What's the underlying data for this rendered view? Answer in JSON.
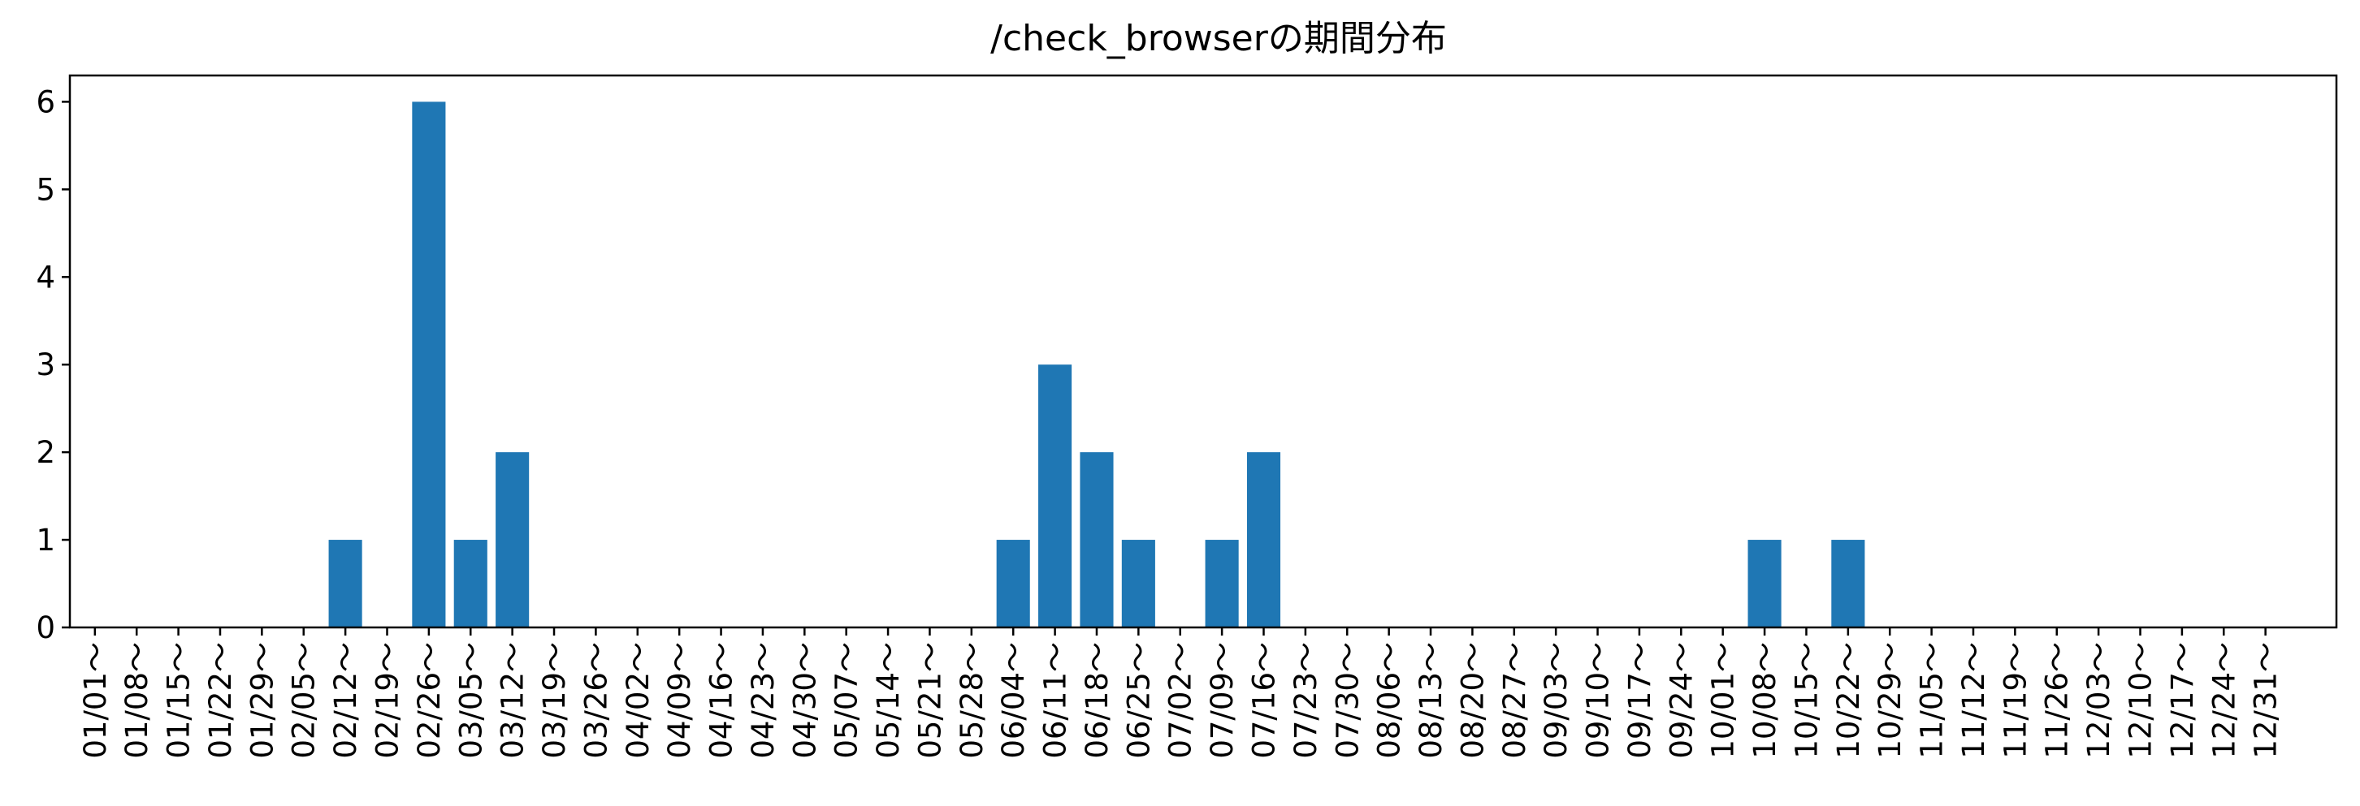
{
  "chart_data": {
    "type": "bar",
    "title": "/check_browserの期間分布",
    "xlabel": "",
    "ylabel": "",
    "ylim": [
      0,
      6.3
    ],
    "yticks": [
      0,
      1,
      2,
      3,
      4,
      5,
      6
    ],
    "grid": false,
    "bar_color": "#1f77b4",
    "categories": [
      "01/01～",
      "01/08～",
      "01/15～",
      "01/22～",
      "01/29～",
      "02/05～",
      "02/12～",
      "02/19～",
      "02/26～",
      "03/05～",
      "03/12～",
      "03/19～",
      "03/26～",
      "04/02～",
      "04/09～",
      "04/16～",
      "04/23～",
      "04/30～",
      "05/07～",
      "05/14～",
      "05/21～",
      "05/28～",
      "06/04～",
      "06/11～",
      "06/18～",
      "06/25～",
      "07/02～",
      "07/09～",
      "07/16～",
      "07/23～",
      "07/30～",
      "08/06～",
      "08/13～",
      "08/20～",
      "08/27～",
      "09/03～",
      "09/10～",
      "09/17～",
      "09/24～",
      "10/01～",
      "10/08～",
      "10/15～",
      "10/22～",
      "10/29～",
      "11/05～",
      "11/12～",
      "11/19～",
      "11/26～",
      "12/03～",
      "12/10～",
      "12/17～",
      "12/24～",
      "12/31～"
    ],
    "values": [
      0,
      0,
      0,
      0,
      0,
      0,
      1,
      0,
      6,
      1,
      2,
      0,
      0,
      0,
      0,
      0,
      0,
      0,
      0,
      0,
      0,
      0,
      1,
      3,
      2,
      1,
      0,
      1,
      2,
      0,
      0,
      0,
      0,
      0,
      0,
      0,
      0,
      0,
      0,
      0,
      1,
      0,
      1,
      0,
      0,
      0,
      0,
      0,
      0,
      0,
      0,
      0,
      0
    ]
  }
}
